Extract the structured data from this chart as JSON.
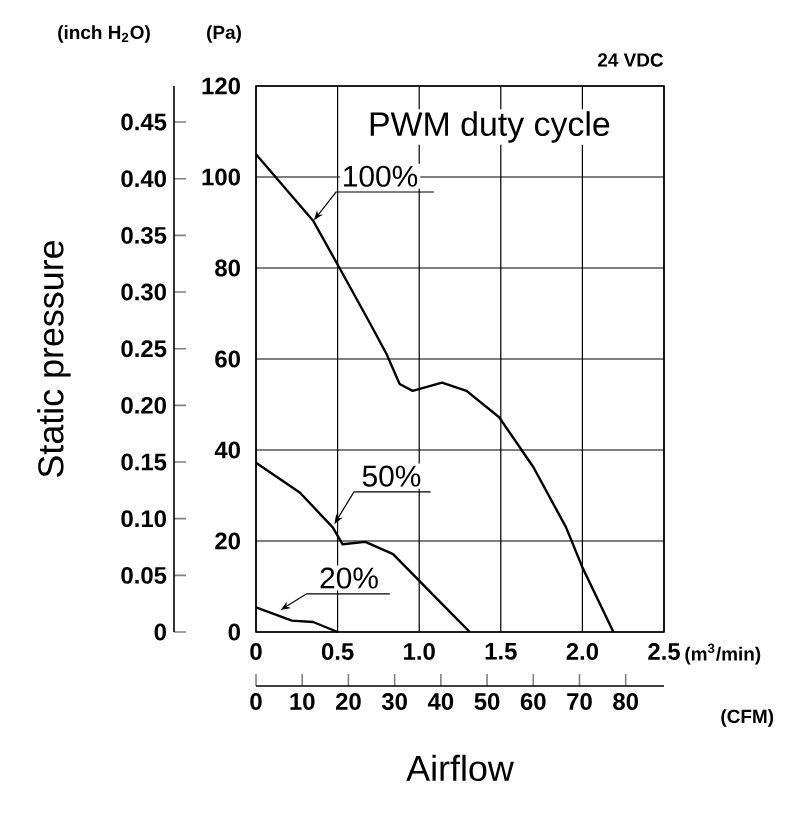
{
  "chart_data": {
    "type": "line",
    "xlabel": "Airflow",
    "ylabel": "Static pressure",
    "annotations": [
      "(inch H$_{2}$O)",
      "(Pa)",
      "(m$^{3}$/min)",
      "(CFM)",
      "24 VDC",
      "PWM duty cycle"
    ],
    "series": [
      {
        "name": "100%",
        "color": "#000000",
        "axis": "y2",
        "x": [
          0,
          0.35,
          0.51,
          0.69,
          0.8,
          0.88,
          0.96,
          1.14,
          1.29,
          1.49,
          1.7,
          1.9,
          2.0,
          2.19
        ],
        "values": [
          105,
          90.4,
          80.1,
          68.4,
          61.1,
          54.5,
          53,
          54.8,
          53,
          47.2,
          36.2,
          23,
          14.2,
          0
        ]
      },
      {
        "name": "50%",
        "color": "#000000",
        "axis": "y2",
        "x": [
          0,
          0.27,
          0.47,
          0.53,
          0.67,
          0.84,
          1.04,
          1.2,
          1.31
        ],
        "values": [
          37.2,
          30.6,
          23,
          19.3,
          19.8,
          17.1,
          9.8,
          4,
          0
        ]
      },
      {
        "name": "20%",
        "color": "#000000",
        "axis": "y2",
        "x": [
          0,
          0.22,
          0.35,
          0.5
        ],
        "values": [
          5.4,
          2.5,
          2.2,
          0
        ]
      }
    ],
    "xlim": [
      0,
      2.5
    ],
    "xticks": [
      0,
      {
        "value": 0.5,
        "label": "0.5"
      },
      {
        "value": 1,
        "label": "1.0"
      },
      {
        "value": 1.5,
        "label": "1.5"
      },
      {
        "value": 2,
        "label": "2.0"
      },
      {
        "value": 2.5,
        "label": "2.5"
      }
    ],
    "y2lim": [
      0,
      120
    ],
    "y2ticks": [
      0,
      20,
      40,
      60,
      80,
      100,
      120
    ],
    "ylim": [
      0,
      0.4818
    ],
    "yticks": [
      0,
      {
        "value": 0.05,
        "label": "0.05"
      },
      {
        "value": 0.1,
        "label": "0.10"
      },
      {
        "value": 0.15,
        "label": "0.15"
      },
      {
        "value": 0.2,
        "label": "0.20"
      },
      {
        "value": 0.25,
        "label": "0.25"
      },
      {
        "value": 0.3,
        "label": "0.30"
      },
      {
        "value": 0.35,
        "label": "0.35"
      },
      {
        "value": 0.4,
        "label": "0.40"
      },
      {
        "value": 0.45,
        "label": "0.45"
      }
    ],
    "x2lim": [
      0,
      88.29
    ],
    "x2ticks": [
      0,
      10,
      20,
      30,
      40,
      50,
      60,
      70,
      80
    ],
    "grid": true,
    "marker": "none",
    "line_style": "solid"
  }
}
